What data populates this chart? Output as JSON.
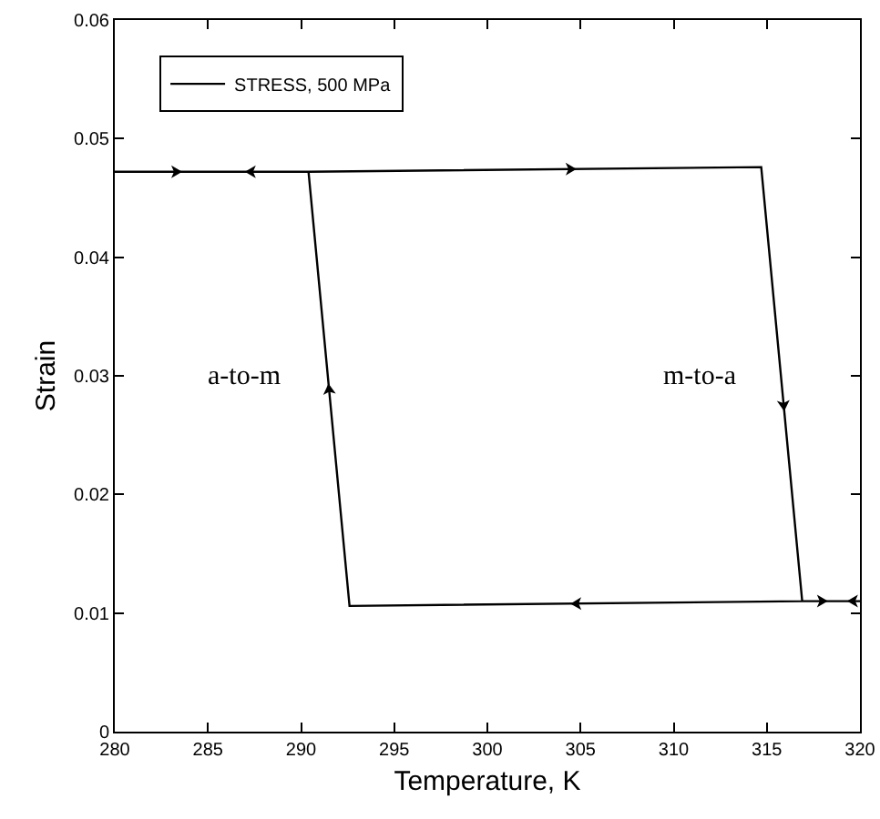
{
  "chart_data": {
    "type": "line",
    "xlabel": "Temperature, K",
    "ylabel": "Strain",
    "series": [
      {
        "name": "STRESS, 500 MPa",
        "color": "#000000",
        "x": [
          280,
          290.4,
          314.7,
          316.9,
          320,
          316.9,
          292.6,
          290.4
        ],
        "values": [
          0.0472,
          0.0472,
          0.0476,
          0.011,
          0.011,
          0.011,
          0.0106,
          0.0472
        ]
      }
    ],
    "annotations": [
      "a-to-m",
      "m-to-a"
    ],
    "xlim": [
      280,
      320
    ],
    "xticks": [
      280,
      285,
      290,
      295,
      300,
      305,
      310,
      315,
      320
    ],
    "ylim": [
      0,
      0.06
    ],
    "yticks": [
      0,
      0.01,
      0.02,
      0.03,
      0.04,
      0.05,
      0.06
    ],
    "grid": false,
    "legend": "top left",
    "marker": "none",
    "line_style": "solid"
  }
}
